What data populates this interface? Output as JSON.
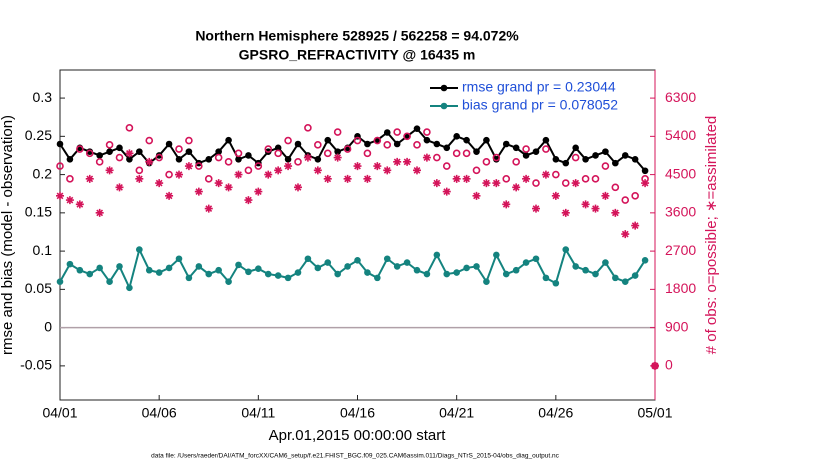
{
  "chart_data": {
    "type": "line",
    "title": "Northern Hemisphere 528925 / 562258 = 94.072%",
    "subtitle": "GPSRO_REFRACTIVITY @ 16435 m",
    "xlabel": "Apr.01,2015 00:00:00 start",
    "ylabel": "rmse and bias (model - observation)",
    "y2label": "# of obs: o=possible; ∗=assimilated",
    "footnote": "data file: /Users/raeder/DAI/ATM_forcXX/CAM6_setup/f.e21.FHIST_BGC.f09_025.CAM6assim.011/Diags_NTrS_2015-04/obs_diag_output.nc",
    "xlim": [
      0,
      30
    ],
    "xticks": [
      {
        "value": 0,
        "label": "04/01"
      },
      {
        "value": 5,
        "label": "04/06"
      },
      {
        "value": 10,
        "label": "04/11"
      },
      {
        "value": 15,
        "label": "04/16"
      },
      {
        "value": 20,
        "label": "04/21"
      },
      {
        "value": 25,
        "label": "04/26"
      },
      {
        "value": 30,
        "label": "05/01"
      }
    ],
    "ylim": [
      -0.0946,
      0.3367
    ],
    "yticks": [
      -0.05,
      0,
      0.05,
      0.1,
      0.15,
      0.2,
      0.25,
      0.3
    ],
    "y2lim": [
      -803,
      6961
    ],
    "y2ticks": [
      0,
      900,
      1800,
      2700,
      3600,
      4500,
      5400,
      6300
    ],
    "zero_line": true,
    "legend": "upper right",
    "x": [
      0,
      0.5,
      1,
      1.5,
      2,
      2.5,
      3,
      3.5,
      4,
      4.5,
      5,
      5.5,
      6,
      6.5,
      7,
      7.5,
      8,
      8.5,
      9,
      9.5,
      10,
      10.5,
      11,
      11.5,
      12,
      12.5,
      13,
      13.5,
      14,
      14.5,
      15,
      15.5,
      16,
      16.5,
      17,
      17.5,
      18,
      18.5,
      19,
      19.5,
      20,
      20.5,
      21,
      21.5,
      22,
      22.5,
      23,
      23.5,
      24,
      24.5,
      25,
      25.5,
      26,
      26.5,
      27,
      27.5,
      28,
      28.5,
      29,
      29.5,
      30
    ],
    "series": [
      {
        "name": "rmse grand pr = 0.23044",
        "color": "#000000",
        "marker": "dot",
        "values": [
          0.24,
          0.22,
          0.235,
          0.23,
          0.225,
          0.23,
          0.235,
          0.22,
          0.23,
          0.215,
          0.225,
          0.24,
          0.22,
          0.23,
          0.215,
          0.22,
          0.23,
          0.245,
          0.22,
          0.225,
          0.215,
          0.23,
          0.235,
          0.22,
          0.24,
          0.225,
          0.22,
          0.245,
          0.23,
          0.235,
          0.25,
          0.24,
          0.245,
          0.255,
          0.24,
          0.25,
          0.26,
          0.245,
          0.24,
          0.235,
          0.25,
          0.245,
          0.23,
          0.245,
          0.22,
          0.24,
          0.235,
          0.225,
          0.23,
          0.245,
          0.22,
          0.215,
          0.235,
          0.22,
          0.225,
          0.23,
          0.215,
          0.225,
          0.22,
          0.205,
          null
        ]
      },
      {
        "name": "bias grand pr = 0.078052",
        "color": "#14837f",
        "marker": "dot",
        "values": [
          0.06,
          0.083,
          0.075,
          0.07,
          0.078,
          0.06,
          0.08,
          0.052,
          0.102,
          0.075,
          0.072,
          0.078,
          0.09,
          0.065,
          0.08,
          0.07,
          0.075,
          0.06,
          0.082,
          0.073,
          0.077,
          0.07,
          0.068,
          0.065,
          0.072,
          0.09,
          0.078,
          0.085,
          0.07,
          0.08,
          0.088,
          0.072,
          0.065,
          0.09,
          0.08,
          0.085,
          0.075,
          0.07,
          0.095,
          0.07,
          0.072,
          0.078,
          0.08,
          0.06,
          0.095,
          0.07,
          0.075,
          0.085,
          0.09,
          0.065,
          0.058,
          0.102,
          0.08,
          0.075,
          0.07,
          0.085,
          0.065,
          0.06,
          0.068,
          0.088,
          null
        ]
      },
      {
        "color": "#d4145a",
        "marker": "circle",
        "axis": "y2",
        "values": [
          4700,
          4400,
          5100,
          5000,
          4800,
          5200,
          4900,
          5600,
          4600,
          5300,
          4900,
          4500,
          5100,
          5300,
          4700,
          4400,
          4900,
          4800,
          5000,
          4600,
          4700,
          5100,
          5000,
          5300,
          4800,
          5600,
          5200,
          5000,
          5500,
          5100,
          5300,
          5000,
          5300,
          5200,
          5500,
          5400,
          5200,
          5500,
          4900,
          4700,
          5000,
          5000,
          4600,
          4800,
          4900,
          4400,
          4800,
          5100,
          4300,
          5100,
          4500,
          4300,
          4900,
          4400,
          4400,
          4700,
          4200,
          3900,
          4000,
          4400,
          0
        ]
      },
      {
        "color": "#d4145a",
        "marker": "asterisk",
        "axis": "y2",
        "values": [
          4000,
          3900,
          3800,
          4400,
          3600,
          4600,
          4200,
          5000,
          4400,
          4800,
          4300,
          4000,
          4500,
          4700,
          4100,
          3700,
          4300,
          4200,
          4500,
          3900,
          4100,
          4500,
          4600,
          4700,
          4200,
          4900,
          4600,
          4400,
          4900,
          4400,
          4700,
          4400,
          4700,
          4600,
          4800,
          4800,
          4600,
          4900,
          4300,
          4100,
          4400,
          4400,
          4000,
          4300,
          4300,
          3800,
          4200,
          4400,
          3700,
          4500,
          4000,
          3600,
          4300,
          3800,
          3700,
          4000,
          3600,
          3100,
          3300,
          4300,
          0
        ]
      }
    ],
    "legend_text_color": "#1f4fd8",
    "y2_color": "#d4145a"
  }
}
